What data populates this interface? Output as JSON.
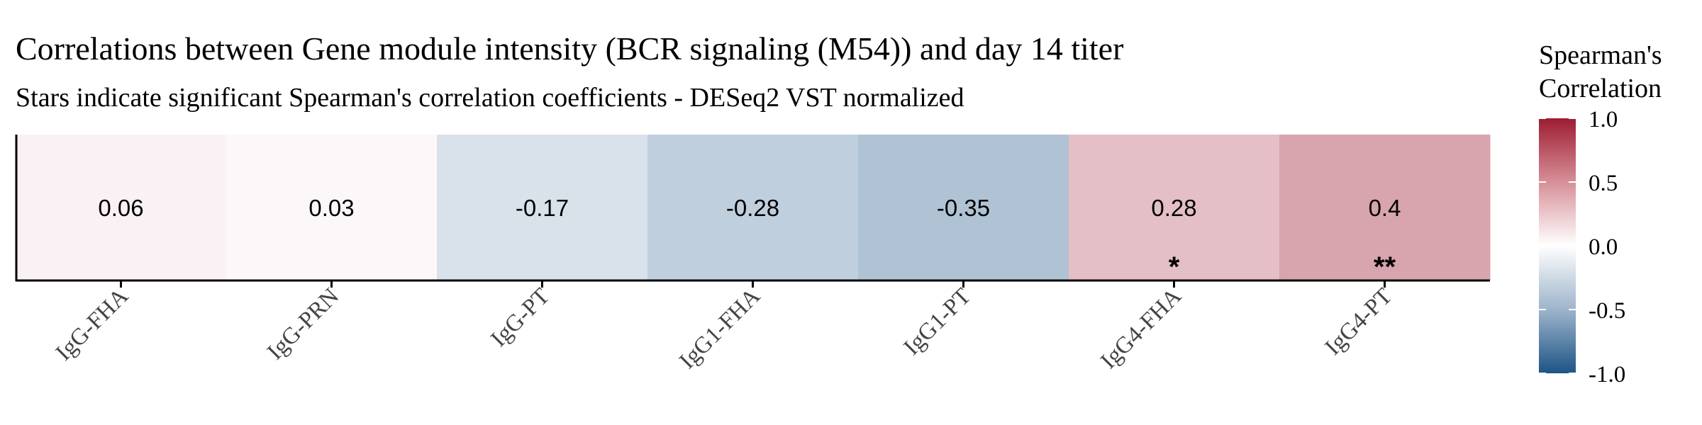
{
  "chart_data": {
    "type": "heatmap",
    "title": "Correlations between Gene module intensity (BCR signaling (M54)) and day 14 titer",
    "subtitle": "Stars indicate significant Spearman's correlation coefficients - DESeq2 VST normalized",
    "categories": [
      "IgG-FHA",
      "IgG-PRN",
      "IgG-PT",
      "IgG1-FHA",
      "IgG1-PT",
      "IgG4-FHA",
      "IgG4-PT"
    ],
    "values": [
      0.06,
      0.03,
      -0.17,
      -0.28,
      -0.35,
      0.28,
      0.4
    ],
    "labels": [
      "0.06",
      "0.03",
      "-0.17",
      "-0.28",
      "-0.35",
      "0.28",
      "0.4"
    ],
    "significance": [
      "",
      "",
      "",
      "",
      "",
      "*",
      "**"
    ],
    "legend": {
      "title_line1": "Spearman's",
      "title_line2": "Correlation",
      "ticks": [
        1.0,
        0.5,
        0.0,
        -0.5,
        -1.0
      ],
      "tick_labels": [
        "1.0",
        "0.5",
        "0.0",
        "-0.5",
        "-1.0"
      ],
      "range": [
        -1,
        1
      ],
      "placement": "right"
    },
    "colors": {
      "low": "#1d5487",
      "mid": "#ffffff",
      "high": "#9d1c32"
    },
    "grid": false
  }
}
